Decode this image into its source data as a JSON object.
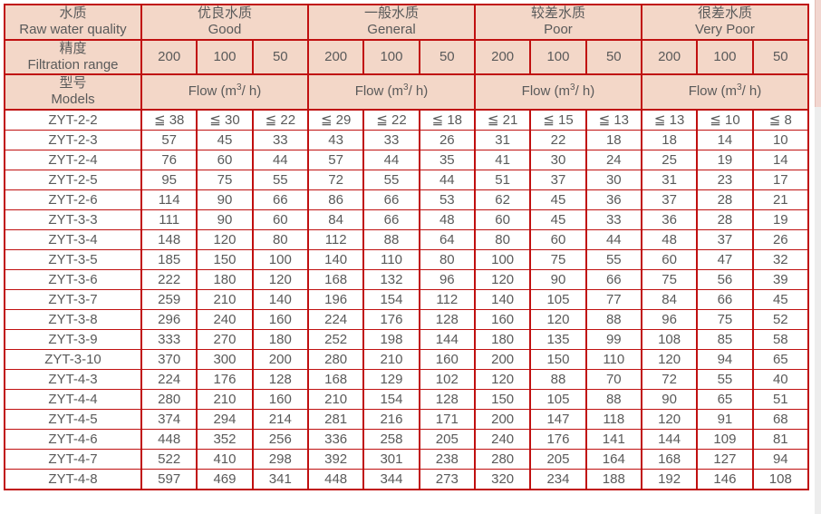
{
  "colors": {
    "border_red": "#c01010",
    "header_pink": "#f3d7c8",
    "text_gray": "#5a5a5a",
    "scroll_track": "#ededed",
    "scroll_thumb": "#f2d6d0"
  },
  "table": {
    "corner": {
      "raw_water_zh": "水质",
      "raw_water_en": "Raw water quality",
      "filtration_zh": "精度",
      "filtration_en": "Filtration range",
      "models_zh": "型号",
      "models_en": "Models"
    },
    "groups": [
      {
        "zh": "优良水质",
        "en": "Good"
      },
      {
        "zh": "一般水质",
        "en": "General"
      },
      {
        "zh": "较差水质",
        "en": "Poor"
      },
      {
        "zh": "很差水质",
        "en": "Very Poor"
      }
    ],
    "filtration_columns": [
      "200",
      "100",
      "50"
    ],
    "flow": {
      "prefix": "Flow (m",
      "sup": "3",
      "suffix": "/ h)"
    },
    "rows": [
      {
        "model": "ZYT-2-2",
        "values": [
          "≦ 38",
          "≦ 30",
          "≦ 22",
          "≦ 29",
          "≦ 22",
          "≦ 18",
          "≦ 21",
          "≦ 15",
          "≦ 13",
          "≦ 13",
          "≦ 10",
          "≦ 8"
        ]
      },
      {
        "model": "ZYT-2-3",
        "values": [
          "57",
          "45",
          "33",
          "43",
          "33",
          "26",
          "31",
          "22",
          "18",
          "18",
          "14",
          "10"
        ]
      },
      {
        "model": "ZYT-2-4",
        "values": [
          "76",
          "60",
          "44",
          "57",
          "44",
          "35",
          "41",
          "30",
          "24",
          "25",
          "19",
          "14"
        ]
      },
      {
        "model": "ZYT-2-5",
        "values": [
          "95",
          "75",
          "55",
          "72",
          "55",
          "44",
          "51",
          "37",
          "30",
          "31",
          "23",
          "17"
        ]
      },
      {
        "model": "ZYT-2-6",
        "values": [
          "114",
          "90",
          "66",
          "86",
          "66",
          "53",
          "62",
          "45",
          "36",
          "37",
          "28",
          "21"
        ]
      },
      {
        "model": "ZYT-3-3",
        "values": [
          "111",
          "90",
          "60",
          "84",
          "66",
          "48",
          "60",
          "45",
          "33",
          "36",
          "28",
          "19"
        ]
      },
      {
        "model": "ZYT-3-4",
        "values": [
          "148",
          "120",
          "80",
          "112",
          "88",
          "64",
          "80",
          "60",
          "44",
          "48",
          "37",
          "26"
        ]
      },
      {
        "model": "ZYT-3-5",
        "values": [
          "185",
          "150",
          "100",
          "140",
          "110",
          "80",
          "100",
          "75",
          "55",
          "60",
          "47",
          "32"
        ]
      },
      {
        "model": "ZYT-3-6",
        "values": [
          "222",
          "180",
          "120",
          "168",
          "132",
          "96",
          "120",
          "90",
          "66",
          "75",
          "56",
          "39"
        ]
      },
      {
        "model": "ZYT-3-7",
        "values": [
          "259",
          "210",
          "140",
          "196",
          "154",
          "112",
          "140",
          "105",
          "77",
          "84",
          "66",
          "45"
        ]
      },
      {
        "model": "ZYT-3-8",
        "values": [
          "296",
          "240",
          "160",
          "224",
          "176",
          "128",
          "160",
          "120",
          "88",
          "96",
          "75",
          "52"
        ]
      },
      {
        "model": "ZYT-3-9",
        "values": [
          "333",
          "270",
          "180",
          "252",
          "198",
          "144",
          "180",
          "135",
          "99",
          "108",
          "85",
          "58"
        ]
      },
      {
        "model": "ZYT-3-10",
        "values": [
          "370",
          "300",
          "200",
          "280",
          "210",
          "160",
          "200",
          "150",
          "110",
          "120",
          "94",
          "65"
        ]
      },
      {
        "model": "ZYT-4-3",
        "values": [
          "224",
          "176",
          "128",
          "168",
          "129",
          "102",
          "120",
          "88",
          "70",
          "72",
          "55",
          "40"
        ]
      },
      {
        "model": "ZYT-4-4",
        "values": [
          "280",
          "210",
          "160",
          "210",
          "154",
          "128",
          "150",
          "105",
          "88",
          "90",
          "65",
          "51"
        ]
      },
      {
        "model": "ZYT-4-5",
        "values": [
          "374",
          "294",
          "214",
          "281",
          "216",
          "171",
          "200",
          "147",
          "118",
          "120",
          "91",
          "68"
        ]
      },
      {
        "model": "ZYT-4-6",
        "values": [
          "448",
          "352",
          "256",
          "336",
          "258",
          "205",
          "240",
          "176",
          "141",
          "144",
          "109",
          "81"
        ]
      },
      {
        "model": "ZYT-4-7",
        "values": [
          "522",
          "410",
          "298",
          "392",
          "301",
          "238",
          "280",
          "205",
          "164",
          "168",
          "127",
          "94"
        ]
      },
      {
        "model": "ZYT-4-8",
        "values": [
          "597",
          "469",
          "341",
          "448",
          "344",
          "273",
          "320",
          "234",
          "188",
          "192",
          "146",
          "108"
        ]
      }
    ]
  }
}
